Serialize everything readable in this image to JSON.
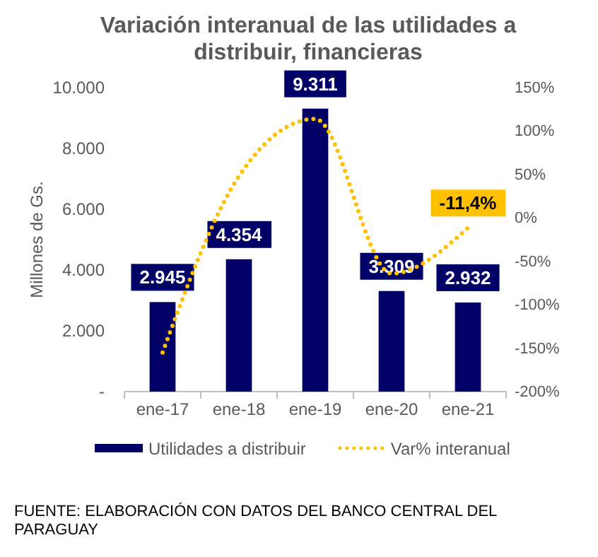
{
  "chart_data": {
    "type": "bar",
    "title": "Variación interanual de las utilidades a distribuir, financieras",
    "ylabel": "Millones de Gs.",
    "categories": [
      "ene-17",
      "ene-18",
      "ene-19",
      "ene-20",
      "ene-21"
    ],
    "series": [
      {
        "name": "Utilidades a distribuir",
        "color": "#000066",
        "values": [
          2945,
          4354,
          9311,
          3309,
          2932
        ],
        "value_labels": [
          "2.945",
          "4.354",
          "9.311",
          "3.309",
          "2.932"
        ]
      },
      {
        "type": "line",
        "name": "Var% interanual",
        "color": "#ffc000",
        "axis": "y2",
        "line_style": "dotted",
        "values": [
          -155,
          48,
          114,
          -64,
          -11.4
        ],
        "value_labels": [
          null,
          null,
          null,
          null,
          "-11,4%"
        ]
      }
    ],
    "ylim": [
      0,
      10000
    ],
    "yticks": [
      {
        "value": 0,
        "label": "-"
      },
      {
        "value": 2000,
        "label": "2.000"
      },
      {
        "value": 4000,
        "label": "4.000"
      },
      {
        "value": 6000,
        "label": "6.000"
      },
      {
        "value": 8000,
        "label": "8.000"
      },
      {
        "value": 10000,
        "label": "10.000"
      }
    ],
    "y2lim": [
      -200,
      150
    ],
    "y2ticks": [
      {
        "value": -200,
        "label": "-200%"
      },
      {
        "value": -150,
        "label": "-150%"
      },
      {
        "value": -100,
        "label": "-100%"
      },
      {
        "value": -50,
        "label": "-50%"
      },
      {
        "value": 0,
        "label": "0%"
      },
      {
        "value": 50,
        "label": "50%"
      },
      {
        "value": 100,
        "label": "100%"
      },
      {
        "value": 150,
        "label": "150%"
      }
    ],
    "legend": "bottom",
    "grid": false,
    "annotations": [
      "FUENTE: ELABORACIÓN CON DATOS DEL BANCO CENTRAL DEL PARAGUAY"
    ]
  }
}
